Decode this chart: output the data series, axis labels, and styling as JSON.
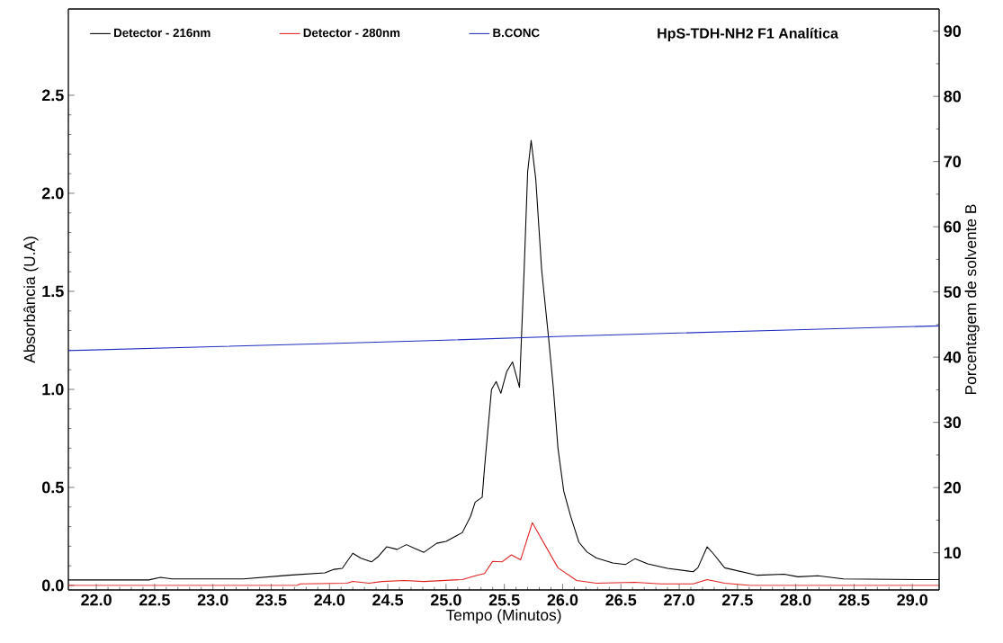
{
  "chart_data": {
    "type": "line",
    "title": "HpS-TDH-NH2  F1  Analítica",
    "xlabel": "Tempo (Minutos)",
    "ylabel": "Absorbância (U.A)",
    "y2label": "Porcentagem de solvente B",
    "xlim": [
      21.76,
      29.23
    ],
    "ylim": [
      -0.023,
      2.94
    ],
    "y2lim": [
      4.3,
      93.4
    ],
    "xticks": [
      {
        "value": 22,
        "label": "22.0"
      },
      {
        "value": 22.5,
        "label": "22.5"
      },
      {
        "value": 23,
        "label": "23.0"
      },
      {
        "value": 23.5,
        "label": "23.5"
      },
      {
        "value": 24,
        "label": "24.0"
      },
      {
        "value": 24.5,
        "label": "24.5"
      },
      {
        "value": 25,
        "label": "25.0"
      },
      {
        "value": 25.5,
        "label": "25.5"
      },
      {
        "value": 26,
        "label": "26.0"
      },
      {
        "value": 26.5,
        "label": "26.5"
      },
      {
        "value": 27,
        "label": "27.0"
      },
      {
        "value": 27.5,
        "label": "27.5"
      },
      {
        "value": 28,
        "label": "28.0"
      },
      {
        "value": 28.5,
        "label": "28.5"
      },
      {
        "value": 29,
        "label": "29.0"
      }
    ],
    "yticks": [
      {
        "value": 0,
        "label": "0.0"
      },
      {
        "value": 0.5,
        "label": "0.5"
      },
      {
        "value": 1,
        "label": "1.0"
      },
      {
        "value": 1.5,
        "label": "1.5"
      },
      {
        "value": 2,
        "label": "2.0"
      },
      {
        "value": 2.5,
        "label": "2.5"
      }
    ],
    "y2ticks": [
      10,
      20,
      30,
      40,
      50,
      60,
      70,
      80,
      90
    ],
    "legend": "top left",
    "marker": "none",
    "line_style": "solid",
    "grid": false,
    "series": [
      {
        "name": "Detector  -  216nm",
        "color": "#000000",
        "x": [
          21.76,
          22.45,
          22.55,
          22.65,
          23.26,
          23.65,
          23.96,
          24.04,
          24.11,
          24.2,
          24.27,
          24.36,
          24.42,
          24.49,
          24.58,
          24.66,
          24.73,
          24.81,
          24.92,
          25.0,
          25.14,
          25.21,
          25.25,
          25.31,
          25.33,
          25.39,
          25.43,
          25.47,
          25.52,
          25.57,
          25.63,
          25.67,
          25.7,
          25.73,
          25.77,
          25.82,
          25.88,
          25.92,
          25.96,
          26.01,
          26.07,
          26.14,
          26.21,
          26.29,
          26.43,
          26.54,
          26.62,
          26.73,
          26.9,
          27.12,
          27.16,
          27.24,
          27.29,
          27.39,
          27.67,
          27.9,
          28.02,
          28.19,
          28.41,
          29.02,
          29.23
        ],
        "values": [
          0.028,
          0.028,
          0.041,
          0.033,
          0.033,
          0.052,
          0.064,
          0.082,
          0.087,
          0.164,
          0.139,
          0.12,
          0.148,
          0.197,
          0.184,
          0.208,
          0.189,
          0.169,
          0.215,
          0.225,
          0.27,
          0.352,
          0.425,
          0.45,
          0.6,
          1.0,
          1.04,
          0.98,
          1.09,
          1.14,
          1.01,
          1.61,
          2.11,
          2.27,
          2.07,
          1.61,
          1.26,
          1.01,
          0.7,
          0.48,
          0.35,
          0.22,
          0.17,
          0.14,
          0.115,
          0.107,
          0.136,
          0.11,
          0.087,
          0.07,
          0.09,
          0.197,
          0.164,
          0.09,
          0.052,
          0.057,
          0.044,
          0.049,
          0.033,
          0.03,
          0.03
        ]
      },
      {
        "name": "Detector  -  280nm",
        "color": "#e02020",
        "x": [
          21.76,
          23.72,
          23.75,
          24.15,
          24.2,
          24.34,
          24.45,
          24.64,
          24.81,
          25.14,
          25.25,
          25.33,
          25.4,
          25.48,
          25.56,
          25.64,
          25.74,
          25.85,
          25.96,
          26.12,
          26.29,
          26.62,
          26.84,
          27.12,
          27.24,
          27.39,
          27.61,
          29.23
        ],
        "values": [
          0.0,
          0.0,
          0.008,
          0.011,
          0.021,
          0.011,
          0.02,
          0.025,
          0.02,
          0.03,
          0.049,
          0.061,
          0.123,
          0.12,
          0.156,
          0.131,
          0.32,
          0.205,
          0.09,
          0.025,
          0.011,
          0.016,
          0.008,
          0.008,
          0.03,
          0.011,
          0.0,
          0.0
        ]
      },
      {
        "name": "B.CONC",
        "color": "#2030c0",
        "axis": "y2",
        "x": [
          21.76,
          23.0,
          24.0,
          25.0,
          26.0,
          27.0,
          28.0,
          29.23
        ],
        "values": [
          41.0,
          41.6,
          42.1,
          42.6,
          43.2,
          43.7,
          44.2,
          44.8
        ]
      }
    ]
  }
}
